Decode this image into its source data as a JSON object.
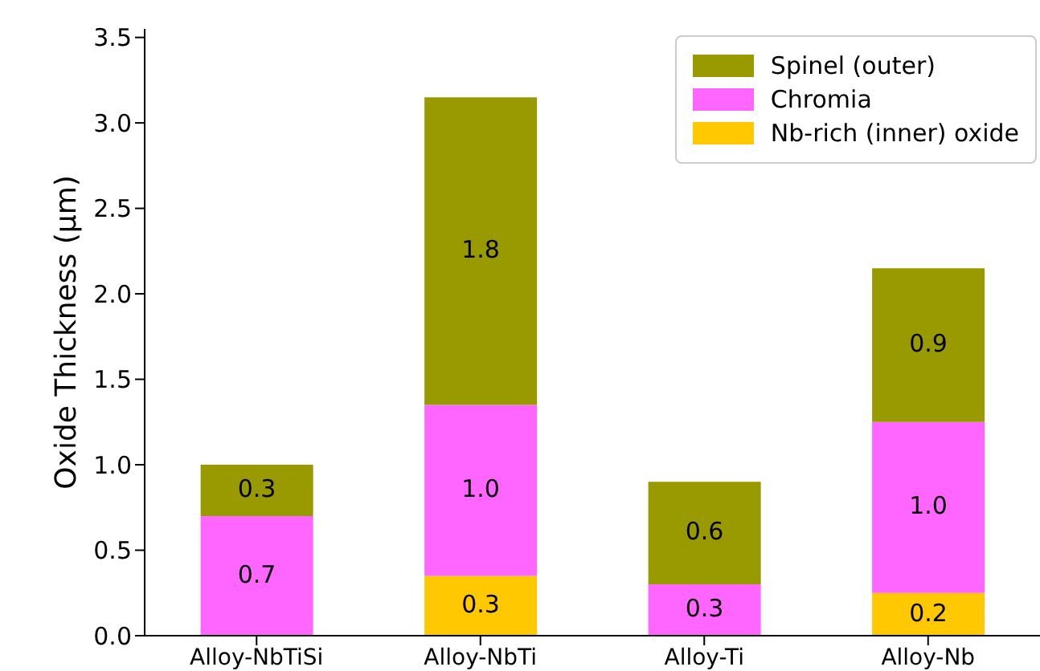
{
  "chart_data": {
    "type": "bar",
    "stacked": true,
    "ylabel": "Oxide Thickness (μm)",
    "categories": [
      "Alloy-NbTiSi",
      "Alloy-NbTi",
      "Alloy-Ti",
      "Alloy-Nb"
    ],
    "series": [
      {
        "name": "Nb-rich (inner) oxide",
        "color": "#ffc800",
        "values": [
          0,
          0.35,
          0,
          0.25
        ],
        "value_labels": [
          null,
          "0.3",
          null,
          "0.2"
        ]
      },
      {
        "name": "Chromia",
        "color": "#ff66ff",
        "values": [
          0.7,
          1.0,
          0.3,
          1.0
        ],
        "value_labels": [
          "0.7",
          "1.0",
          "0.3",
          "1.0"
        ]
      },
      {
        "name": "Spinel (outer)",
        "color": "#999900",
        "values": [
          0.3,
          1.8,
          0.6,
          0.9
        ],
        "value_labels": [
          "0.3",
          "1.8",
          "0.6",
          "0.9"
        ]
      }
    ],
    "ylim": [
      0,
      3.55
    ],
    "yticks": [
      {
        "value": 0,
        "label": "0.0"
      },
      {
        "value": 0.5,
        "label": "0.5"
      },
      {
        "value": 1,
        "label": "1.0"
      },
      {
        "value": 1.5,
        "label": "1.5"
      },
      {
        "value": 2,
        "label": "2.0"
      },
      {
        "value": 2.5,
        "label": "2.5"
      },
      {
        "value": 3,
        "label": "3.0"
      },
      {
        "value": 3.5,
        "label": "3.5"
      }
    ],
    "legend": "top right",
    "grid": false
  }
}
